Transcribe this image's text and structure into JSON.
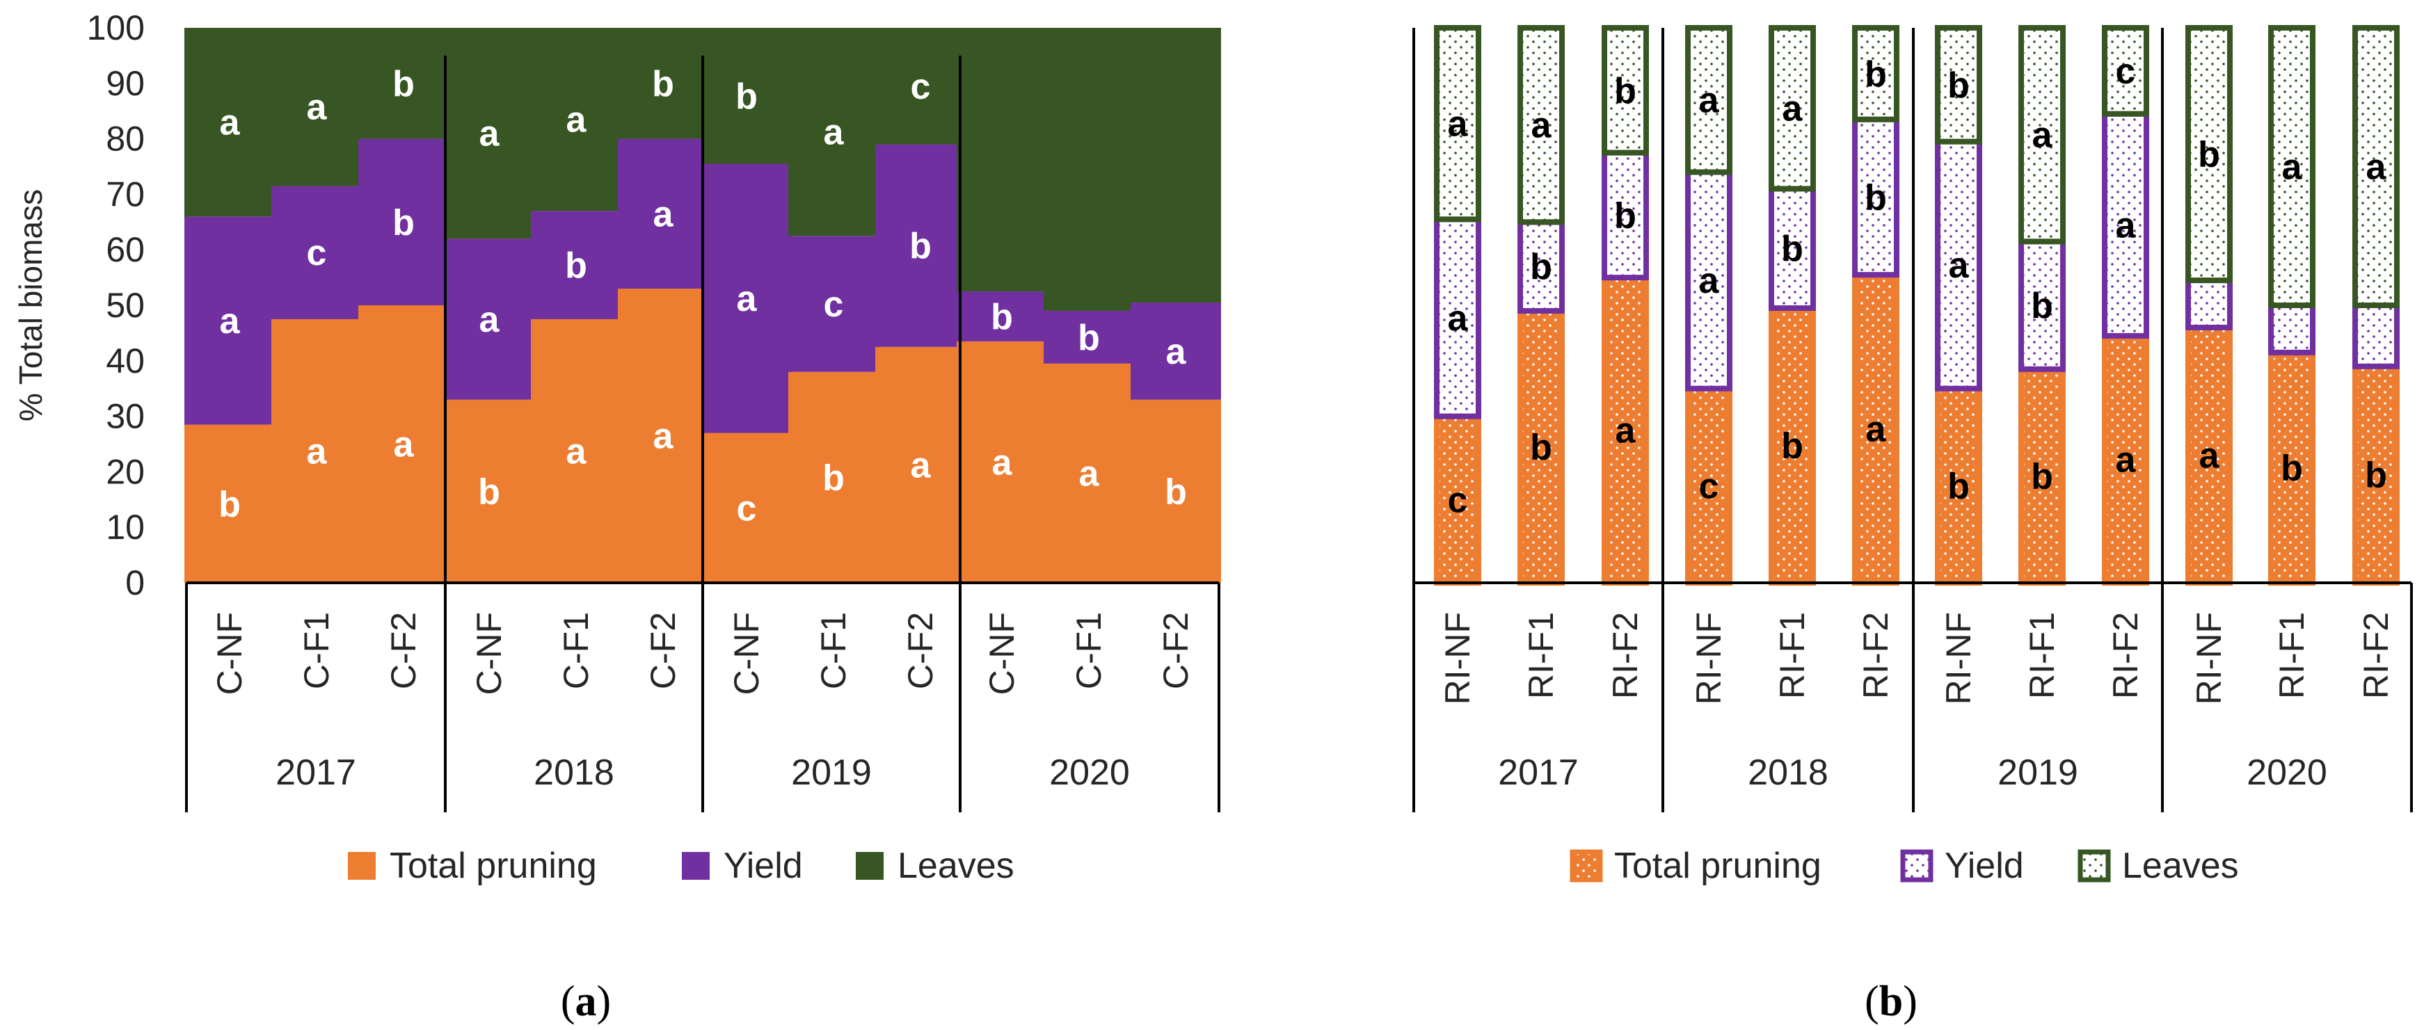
{
  "colors": {
    "pruning": "#ED7D31",
    "yield": "#7030A0",
    "leaves": "#375623",
    "axis": "#000000"
  },
  "panels": {
    "a": {
      "label_open": "(",
      "label_letter": "a",
      "label_close": ")"
    },
    "b": {
      "label_open": "(",
      "label_letter": "b",
      "label_close": ")"
    }
  },
  "chart_data": [
    {
      "type": "bar",
      "stacked": true,
      "panel": "a",
      "ylabel": "% Total biomass",
      "ylim": [
        0,
        100
      ],
      "yticks": [
        "0",
        "10",
        "20",
        "30",
        "40",
        "50",
        "60",
        "70",
        "80",
        "90",
        "100"
      ],
      "years": [
        "2017",
        "2018",
        "2019",
        "2020"
      ],
      "categories": [
        "C-NF",
        "C-F1",
        "C-F2",
        "C-NF",
        "C-F1",
        "C-F2",
        "C-NF",
        "C-F1",
        "C-F2",
        "C-NF",
        "C-F1",
        "C-F2"
      ],
      "legend": [
        "Total pruning",
        "Yield",
        "Leaves"
      ],
      "series": [
        {
          "name": "Total pruning",
          "values": [
            28.5,
            47.5,
            50,
            33,
            47.5,
            53,
            27,
            38,
            42.5,
            43.5,
            39.5,
            33
          ],
          "letters": [
            "b",
            "a",
            "a",
            "b",
            "a",
            "a",
            "c",
            "b",
            "a",
            "a",
            "a",
            "b"
          ]
        },
        {
          "name": "Yield",
          "values": [
            37.5,
            24,
            30,
            29,
            19.5,
            27,
            48.5,
            24.5,
            36.5,
            9,
            9.5,
            17.5
          ],
          "letters": [
            "a",
            "c",
            "b",
            "a",
            "b",
            "a",
            "a",
            "c",
            "b",
            "b",
            "b",
            "a"
          ]
        },
        {
          "name": "Leaves",
          "values": [
            34,
            28.5,
            20,
            38,
            33,
            20,
            24.5,
            37.5,
            21,
            47.5,
            51,
            49.5
          ],
          "letters": [
            "a",
            "a",
            "b",
            "a",
            "a",
            "b",
            "b",
            "a",
            "c",
            "",
            "",
            ""
          ]
        }
      ]
    },
    {
      "type": "bar",
      "stacked": true,
      "panel": "b",
      "pattern": "dotted",
      "ylabel": "",
      "ylim": [
        0,
        100
      ],
      "years": [
        "2017",
        "2018",
        "2019",
        "2020"
      ],
      "categories": [
        "RI-NF",
        "RI-F1",
        "RI-F2",
        "RI-NF",
        "RI-F1",
        "RI-F2",
        "RI-NF",
        "RI-F1",
        "RI-F2",
        "RI-NF",
        "RI-F1",
        "RI-F2"
      ],
      "legend": [
        "Total pruning",
        "Yield",
        "Leaves"
      ],
      "series": [
        {
          "name": "Total pruning",
          "values": [
            30,
            49,
            55,
            35,
            49.5,
            55.5,
            35,
            38.5,
            44.5,
            46,
            41.5,
            39
          ],
          "letters": [
            "c",
            "b",
            "a",
            "c",
            "b",
            "a",
            "b",
            "b",
            "a",
            "a",
            "b",
            "b"
          ]
        },
        {
          "name": "Yield",
          "values": [
            35.5,
            16,
            22.5,
            39,
            21.5,
            28,
            44.5,
            23,
            40,
            8.5,
            8.5,
            11
          ],
          "letters": [
            "a",
            "b",
            "b",
            "a",
            "b",
            "b",
            "a",
            "b",
            "a",
            "",
            "",
            ""
          ]
        },
        {
          "name": "Leaves",
          "values": [
            34.5,
            35,
            22.5,
            26,
            29,
            16.5,
            20.5,
            38.5,
            15.5,
            45.5,
            50,
            50
          ],
          "letters": [
            "a",
            "a",
            "b",
            "a",
            "a",
            "b",
            "b",
            "a",
            "c",
            "b",
            "a",
            "a"
          ]
        }
      ]
    }
  ]
}
